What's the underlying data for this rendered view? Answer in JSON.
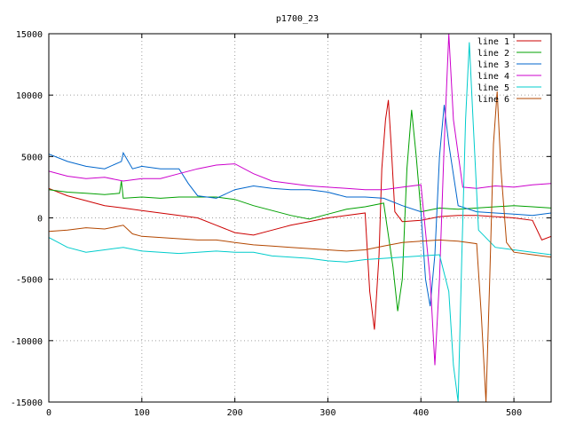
{
  "chart_data": {
    "type": "line",
    "title": "p1700_23",
    "xlabel": "",
    "ylabel": "",
    "xlim": [
      0,
      540
    ],
    "ylim": [
      -15000,
      15000
    ],
    "x_ticks": [
      0,
      100,
      200,
      300,
      400,
      500
    ],
    "y_ticks": [
      -15000,
      -10000,
      -5000,
      0,
      5000,
      10000,
      15000
    ],
    "grid": true,
    "legend_position": "top-right",
    "series": [
      {
        "name": "line 1",
        "color": "#cc0000",
        "points": [
          [
            0,
            2400
          ],
          [
            20,
            1800
          ],
          [
            40,
            1400
          ],
          [
            60,
            1000
          ],
          [
            80,
            800
          ],
          [
            100,
            600
          ],
          [
            120,
            400
          ],
          [
            140,
            200
          ],
          [
            160,
            0
          ],
          [
            180,
            -600
          ],
          [
            200,
            -1200
          ],
          [
            220,
            -1400
          ],
          [
            240,
            -1000
          ],
          [
            260,
            -600
          ],
          [
            280,
            -300
          ],
          [
            300,
            0
          ],
          [
            320,
            200
          ],
          [
            340,
            400
          ],
          [
            345,
            -6000
          ],
          [
            350,
            -9100
          ],
          [
            355,
            -3000
          ],
          [
            358,
            4000
          ],
          [
            362,
            8000
          ],
          [
            365,
            9600
          ],
          [
            368,
            6000
          ],
          [
            372,
            500
          ],
          [
            380,
            -300
          ],
          [
            400,
            -200
          ],
          [
            420,
            100
          ],
          [
            440,
            200
          ],
          [
            460,
            200
          ],
          [
            480,
            100
          ],
          [
            500,
            0
          ],
          [
            520,
            -200
          ],
          [
            530,
            -1800
          ],
          [
            540,
            -1500
          ]
        ]
      },
      {
        "name": "line 2",
        "color": "#00a000",
        "points": [
          [
            0,
            2300
          ],
          [
            20,
            2100
          ],
          [
            40,
            2000
          ],
          [
            60,
            1900
          ],
          [
            76,
            2000
          ],
          [
            78,
            3000
          ],
          [
            80,
            1600
          ],
          [
            100,
            1700
          ],
          [
            120,
            1600
          ],
          [
            140,
            1700
          ],
          [
            160,
            1700
          ],
          [
            180,
            1700
          ],
          [
            200,
            1500
          ],
          [
            220,
            1000
          ],
          [
            240,
            600
          ],
          [
            260,
            200
          ],
          [
            280,
            -100
          ],
          [
            300,
            300
          ],
          [
            320,
            700
          ],
          [
            340,
            900
          ],
          [
            360,
            1200
          ],
          [
            370,
            -4000
          ],
          [
            375,
            -7600
          ],
          [
            380,
            -5000
          ],
          [
            385,
            4000
          ],
          [
            390,
            8800
          ],
          [
            395,
            5000
          ],
          [
            400,
            500
          ],
          [
            420,
            800
          ],
          [
            440,
            700
          ],
          [
            460,
            800
          ],
          [
            480,
            900
          ],
          [
            500,
            1000
          ],
          [
            520,
            900
          ],
          [
            540,
            800
          ]
        ]
      },
      {
        "name": "line 3",
        "color": "#0066cc",
        "points": [
          [
            0,
            5200
          ],
          [
            20,
            4600
          ],
          [
            40,
            4200
          ],
          [
            60,
            4000
          ],
          [
            78,
            4600
          ],
          [
            80,
            5300
          ],
          [
            90,
            4000
          ],
          [
            100,
            4200
          ],
          [
            120,
            4000
          ],
          [
            140,
            4000
          ],
          [
            150,
            2800
          ],
          [
            160,
            1800
          ],
          [
            180,
            1600
          ],
          [
            200,
            2300
          ],
          [
            220,
            2600
          ],
          [
            240,
            2400
          ],
          [
            260,
            2300
          ],
          [
            280,
            2300
          ],
          [
            300,
            2100
          ],
          [
            320,
            1700
          ],
          [
            340,
            1700
          ],
          [
            360,
            1600
          ],
          [
            380,
            1000
          ],
          [
            400,
            500
          ],
          [
            405,
            -5000
          ],
          [
            410,
            -7200
          ],
          [
            415,
            -3000
          ],
          [
            420,
            5000
          ],
          [
            425,
            9200
          ],
          [
            430,
            6000
          ],
          [
            440,
            1000
          ],
          [
            460,
            500
          ],
          [
            480,
            400
          ],
          [
            500,
            300
          ],
          [
            520,
            200
          ],
          [
            540,
            400
          ]
        ]
      },
      {
        "name": "line 4",
        "color": "#cc00cc",
        "points": [
          [
            0,
            3800
          ],
          [
            20,
            3400
          ],
          [
            40,
            3200
          ],
          [
            60,
            3300
          ],
          [
            80,
            3000
          ],
          [
            100,
            3200
          ],
          [
            120,
            3200
          ],
          [
            140,
            3600
          ],
          [
            160,
            4000
          ],
          [
            180,
            4300
          ],
          [
            200,
            4400
          ],
          [
            220,
            3600
          ],
          [
            240,
            3000
          ],
          [
            260,
            2800
          ],
          [
            280,
            2600
          ],
          [
            300,
            2500
          ],
          [
            320,
            2400
          ],
          [
            340,
            2300
          ],
          [
            360,
            2300
          ],
          [
            380,
            2500
          ],
          [
            400,
            2700
          ],
          [
            410,
            -5000
          ],
          [
            415,
            -12000
          ],
          [
            420,
            -5000
          ],
          [
            425,
            6000
          ],
          [
            430,
            15000
          ],
          [
            435,
            8000
          ],
          [
            445,
            2500
          ],
          [
            460,
            2400
          ],
          [
            480,
            2600
          ],
          [
            500,
            2500
          ],
          [
            520,
            2700
          ],
          [
            540,
            2800
          ]
        ]
      },
      {
        "name": "line 5",
        "color": "#00cccc",
        "points": [
          [
            0,
            -1600
          ],
          [
            20,
            -2400
          ],
          [
            40,
            -2800
          ],
          [
            60,
            -2600
          ],
          [
            80,
            -2400
          ],
          [
            100,
            -2700
          ],
          [
            120,
            -2800
          ],
          [
            140,
            -2900
          ],
          [
            160,
            -2800
          ],
          [
            180,
            -2700
          ],
          [
            200,
            -2800
          ],
          [
            220,
            -2800
          ],
          [
            240,
            -3100
          ],
          [
            260,
            -3200
          ],
          [
            280,
            -3300
          ],
          [
            300,
            -3500
          ],
          [
            320,
            -3600
          ],
          [
            340,
            -3400
          ],
          [
            360,
            -3300
          ],
          [
            380,
            -3200
          ],
          [
            400,
            -3100
          ],
          [
            420,
            -3000
          ],
          [
            430,
            -6000
          ],
          [
            435,
            -12000
          ],
          [
            440,
            -15000
          ],
          [
            444,
            -3000
          ],
          [
            448,
            8000
          ],
          [
            452,
            14300
          ],
          [
            456,
            8000
          ],
          [
            462,
            -1000
          ],
          [
            480,
            -2400
          ],
          [
            500,
            -2600
          ],
          [
            520,
            -2800
          ],
          [
            540,
            -3000
          ]
        ]
      },
      {
        "name": "line 6",
        "color": "#b34700",
        "points": [
          [
            0,
            -1100
          ],
          [
            20,
            -1000
          ],
          [
            40,
            -800
          ],
          [
            60,
            -900
          ],
          [
            80,
            -600
          ],
          [
            90,
            -1300
          ],
          [
            100,
            -1500
          ],
          [
            120,
            -1600
          ],
          [
            140,
            -1700
          ],
          [
            160,
            -1800
          ],
          [
            180,
            -1800
          ],
          [
            200,
            -2000
          ],
          [
            220,
            -2200
          ],
          [
            240,
            -2300
          ],
          [
            260,
            -2400
          ],
          [
            280,
            -2500
          ],
          [
            300,
            -2600
          ],
          [
            320,
            -2700
          ],
          [
            340,
            -2600
          ],
          [
            360,
            -2300
          ],
          [
            380,
            -2000
          ],
          [
            400,
            -1900
          ],
          [
            420,
            -1800
          ],
          [
            440,
            -1900
          ],
          [
            460,
            -2100
          ],
          [
            465,
            -8000
          ],
          [
            470,
            -15000
          ],
          [
            474,
            -5000
          ],
          [
            478,
            6000
          ],
          [
            482,
            10300
          ],
          [
            486,
            4000
          ],
          [
            492,
            -2000
          ],
          [
            500,
            -2800
          ],
          [
            520,
            -3000
          ],
          [
            540,
            -3200
          ]
        ]
      }
    ]
  }
}
